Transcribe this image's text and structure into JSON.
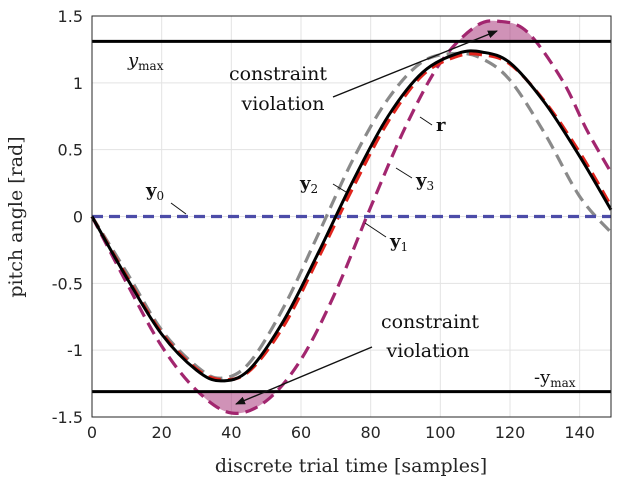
{
  "chart_data": {
    "type": "line",
    "title": "",
    "xlabel": "discrete trial time [samples]",
    "ylabel": "pitch angle [rad]",
    "xlim": [
      0,
      149
    ],
    "ylim": [
      -1.5,
      1.5
    ],
    "xticks": [
      "0",
      "20",
      "40",
      "60",
      "80",
      "100",
      "120",
      "140"
    ],
    "yticks": [
      "1.5",
      "1",
      "0.5",
      "0",
      "-0.5",
      "-1",
      "-1.5"
    ],
    "grid": true,
    "colors": {
      "constraint": "#000000",
      "r": "#000000",
      "y0": "#4c4ca8",
      "y1": "#e0241c",
      "y2": "#8a8a8a",
      "y3": "#a2266f",
      "violation_fill": "#a2266f"
    },
    "series": [
      {
        "id": "ymax",
        "label": "y",
        "sub": "max",
        "x": [
          0,
          149
        ],
        "values": [
          1.31,
          1.31
        ]
      },
      {
        "id": "neg_ymax",
        "label": "-y",
        "sub": "max",
        "x": [
          0,
          149
        ],
        "values": [
          -1.31,
          -1.31
        ]
      },
      {
        "id": "r",
        "label": "r",
        "x": [
          0,
          10,
          20,
          30,
          37,
          45,
          55,
          65,
          75,
          85,
          95,
          105,
          112,
          120,
          130,
          140,
          149
        ],
        "values": [
          0.0,
          -0.46,
          -0.88,
          -1.15,
          -1.23,
          -1.15,
          -0.78,
          -0.27,
          0.27,
          0.75,
          1.08,
          1.22,
          1.23,
          1.15,
          0.85,
          0.45,
          0.05
        ]
      },
      {
        "id": "y0",
        "label": "y",
        "sub": "0",
        "x": [
          0,
          149
        ],
        "values": [
          0.0,
          0.0
        ]
      },
      {
        "id": "y1",
        "label": "y",
        "sub": "1",
        "x": [
          0,
          10,
          20,
          30,
          37,
          45,
          55,
          65,
          75,
          85,
          95,
          105,
          112,
          120,
          130,
          140,
          149
        ],
        "values": [
          0.0,
          -0.45,
          -0.87,
          -1.14,
          -1.22,
          -1.16,
          -0.82,
          -0.31,
          0.22,
          0.71,
          1.06,
          1.2,
          1.21,
          1.14,
          0.86,
          0.48,
          0.08
        ]
      },
      {
        "id": "y2",
        "label": "y",
        "sub": "2",
        "x": [
          0,
          10,
          20,
          30,
          37,
          45,
          55,
          65,
          75,
          85,
          95,
          105,
          112,
          120,
          130,
          140,
          149
        ],
        "values": [
          0.0,
          -0.42,
          -0.85,
          -1.12,
          -1.21,
          -1.1,
          -0.68,
          -0.13,
          0.43,
          0.88,
          1.16,
          1.22,
          1.18,
          1.02,
          0.62,
          0.15,
          -0.12
        ]
      },
      {
        "id": "y3",
        "label": "y",
        "sub": "3",
        "x": [
          0,
          10,
          20,
          30,
          40,
          50,
          60,
          70,
          80,
          90,
          100,
          110,
          117,
          125,
          135,
          142,
          149
        ],
        "values": [
          0.0,
          -0.5,
          -0.97,
          -1.3,
          -1.47,
          -1.38,
          -1.07,
          -0.56,
          0.07,
          0.67,
          1.15,
          1.42,
          1.46,
          1.38,
          1.02,
          0.65,
          0.33
        ]
      }
    ],
    "annotations": [
      {
        "text_lines": [
          "constraint",
          "violation"
        ]
      },
      {
        "text_lines": [
          "constraint",
          "violation"
        ]
      }
    ]
  }
}
